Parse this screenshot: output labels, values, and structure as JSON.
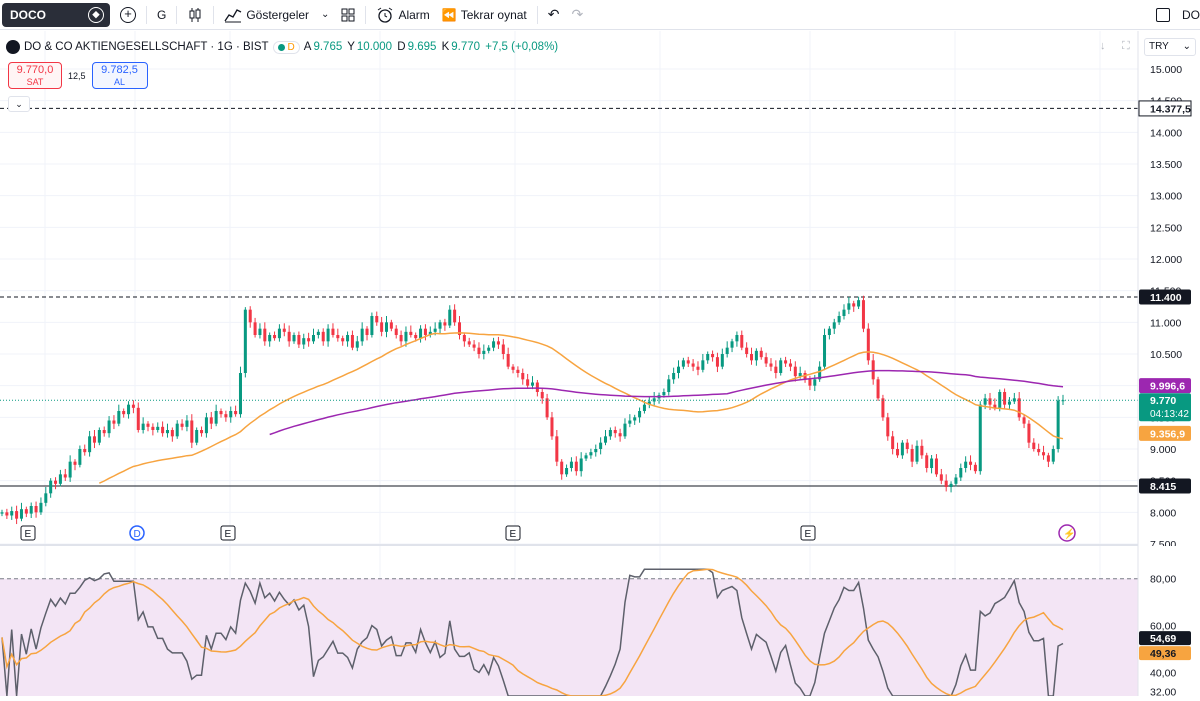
{
  "toolbar": {
    "symbol": "DOCO",
    "interval": "G",
    "indicators_label": "Göstergeler",
    "alarm_label": "Alarm",
    "replay_label": "Tekrar oynat",
    "right_label": "DO"
  },
  "legend": {
    "title": "DO & CO AKTIENGESELLSCHAFT · 1G · BIST",
    "status_badge": "D",
    "open_label": "A",
    "open": "9.765",
    "high_label": "Y",
    "high": "10.000",
    "low_label": "D",
    "low": "9.695",
    "close_label": "K",
    "close": "9.770",
    "change": "+7,5 (+0,08%)"
  },
  "trade": {
    "sell_price": "9.770,0",
    "sell_label": "SAT",
    "spread": "12,5",
    "buy_price": "9.782,5",
    "buy_label": "AL"
  },
  "currency": "TRY",
  "price_axis": {
    "ticks": [
      "15.000",
      "14.500",
      "14.000",
      "13.500",
      "13.000",
      "12.500",
      "12.000",
      "11.500",
      "11.000",
      "10.500",
      "10.000",
      "9.500",
      "9.000",
      "8.500",
      "8.000",
      "7.500"
    ],
    "labels": {
      "line_top": "14.377,5",
      "line_high": "11.400",
      "ma_purple": "9.996,6",
      "last_price": "9.770",
      "countdown": "04:13:42",
      "ma_orange": "9.356,9",
      "line_low": "8.415"
    }
  },
  "rsi_axis": {
    "ticks": [
      "80,00",
      "60,00",
      "40,00",
      "32,00"
    ],
    "labels": {
      "rsi": "54,69",
      "rsi_ma": "49,36"
    }
  },
  "event_markers": [
    "E",
    "D",
    "E",
    "E",
    "E"
  ],
  "colors": {
    "up": "#089981",
    "down": "#f23645",
    "ma_orange": "#f7a440",
    "ma_purple": "#9c27b0",
    "rsi": "#5d606b",
    "rsi_ma": "#f7a440",
    "rsi_band": "#f3e5f5",
    "buy": "#2962ff"
  },
  "chart_data": {
    "type": "candlestick",
    "ylim": [
      7500,
      15000
    ],
    "hlines": [
      14377.5,
      11400,
      8415
    ],
    "closes": [
      8000,
      7950,
      8020,
      7900,
      8050,
      7980,
      8100,
      8000,
      8150,
      8300,
      8500,
      8450,
      8600,
      8550,
      8800,
      8750,
      9000,
      8950,
      9200,
      9100,
      9300,
      9250,
      9450,
      9400,
      9600,
      9550,
      9700,
      9650,
      9300,
      9400,
      9350,
      9300,
      9350,
      9250,
      9300,
      9200,
      9400,
      9350,
      9450,
      9100,
      9300,
      9250,
      9500,
      9400,
      9600,
      9550,
      9500,
      9600,
      9550,
      10200,
      11200,
      11000,
      10800,
      10900,
      10700,
      10800,
      10750,
      10900,
      10850,
      10700,
      10800,
      10650,
      10750,
      10700,
      10800,
      10850,
      10700,
      10900,
      10800,
      10750,
      10700,
      10800,
      10600,
      10700,
      10900,
      10800,
      11100,
      11000,
      10850,
      11000,
      10900,
      10800,
      10700,
      10850,
      10800,
      10750,
      10900,
      10800,
      10850,
      10900,
      11000,
      10950,
      11200,
      11000,
      10800,
      10700,
      10650,
      10600,
      10500,
      10550,
      10600,
      10700,
      10650,
      10500,
      10300,
      10250,
      10200,
      10100,
      10000,
      10050,
      9900,
      9800,
      9500,
      9200,
      8800,
      8600,
      8700,
      8800,
      8650,
      8850,
      8900,
      8950,
      9000,
      9100,
      9200,
      9300,
      9250,
      9200,
      9400,
      9450,
      9500,
      9600,
      9700,
      9750,
      9800,
      9850,
      9900,
      10100,
      10200,
      10300,
      10400,
      10350,
      10300,
      10250,
      10400,
      10500,
      10450,
      10300,
      10500,
      10600,
      10700,
      10800,
      10600,
      10500,
      10400,
      10550,
      10450,
      10350,
      10300,
      10200,
      10400,
      10350,
      10300,
      10150,
      10200,
      10100,
      10000,
      10100,
      10300,
      10800,
      10900,
      11000,
      11100,
      11200,
      11300,
      11250,
      11350,
      10900,
      10400,
      10100,
      9800,
      9500,
      9200,
      9000,
      8900,
      9100,
      9000,
      8800,
      9050,
      8900,
      8700,
      8850,
      8600,
      8500,
      8400,
      8450,
      8550,
      8700,
      8800,
      8750,
      8650,
      9700,
      9800,
      9700,
      9650,
      9900,
      9700,
      9750,
      9800,
      9500,
      9400,
      9100,
      9000,
      8950,
      8900,
      8800,
      9000,
      9765,
      9770
    ]
  }
}
